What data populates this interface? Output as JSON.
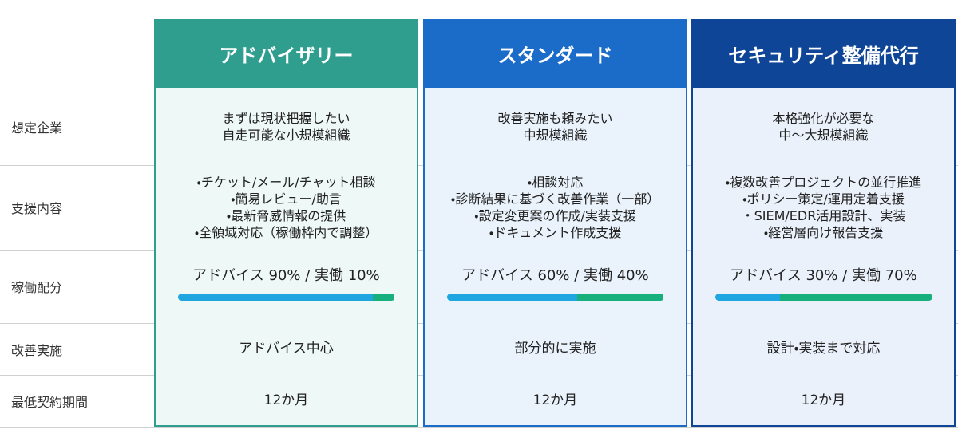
{
  "row_labels": [
    "想定企業",
    "支援内容",
    "稼働配分",
    "改善実施",
    "最低契約期間"
  ],
  "plans": [
    {
      "name": "アドバイザリー",
      "target": [
        "まずは現状把握したい",
        "自走可能な小規模組織"
      ],
      "support": [
        "・チケット/メール/チャット相談",
        "・簡易レビュー/助言",
        "・最新脅威情報の提供",
        "・全領域対応（稼働枠内で調整）"
      ],
      "allocation": {
        "text": "アドバイス 90% / 実働 10%",
        "advice": 90,
        "work": 10
      },
      "improvement": "アドバイス中心",
      "period": "12か月"
    },
    {
      "name": "スタンダード",
      "target": [
        "改善実施も頼みたい",
        "中規模組織"
      ],
      "support": [
        "・相談対応",
        "・診断結果に基づく改善作業（一部）",
        "・設定変更案の作成/実装支援",
        "・ドキュメント作成支援"
      ],
      "allocation": {
        "text": "アドバイス 60% / 実働 40%",
        "advice": 60,
        "work": 40
      },
      "improvement": "部分的に実施",
      "period": "12か月"
    },
    {
      "name": "セキュリティ整備代行",
      "target": [
        "本格強化が必要な",
        "中〜大規模組織"
      ],
      "support": [
        "・複数改善プロジェクトの並行推進",
        "・ポリシー策定/運用定着支援",
        "・SIEM/EDR活用設計、実装",
        "・経営層向け報告支援"
      ],
      "allocation": {
        "text": "アドバイス 30% / 実働 70%",
        "advice": 30,
        "work": 70
      },
      "improvement": "設計・実装まで対応",
      "period": "12か月"
    }
  ]
}
